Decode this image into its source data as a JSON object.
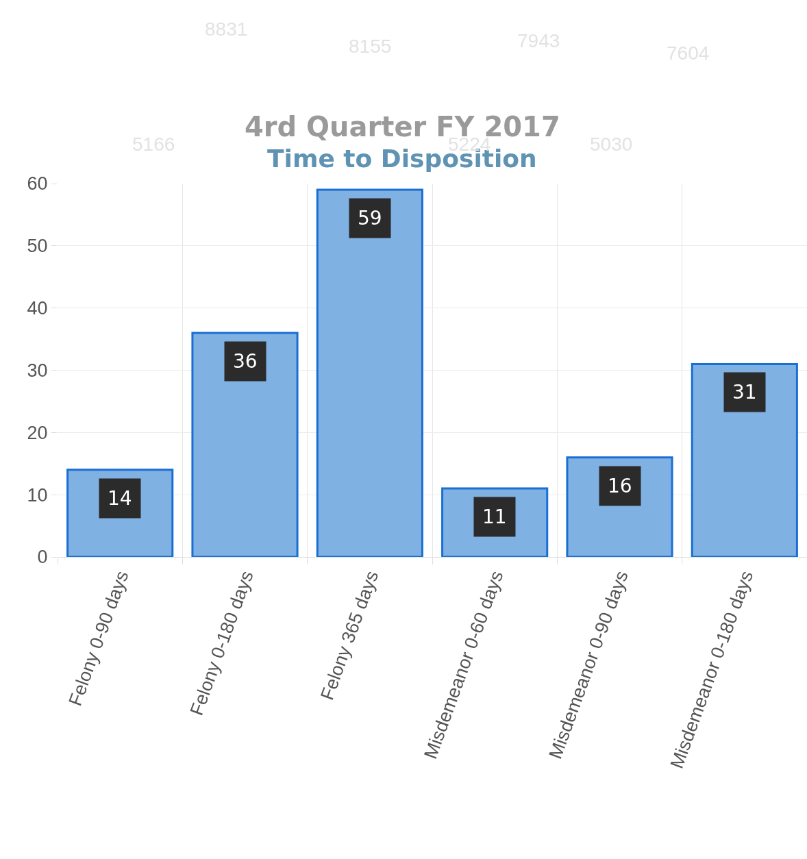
{
  "chart_data": {
    "type": "bar",
    "title": "4rd Quarter FY 2017",
    "subtitle": "Time to Disposition",
    "categories": [
      "Felony 0-90 days",
      "Felony 0-180 days",
      "Felony 365 days",
      "Misdemeanor 0-60 days",
      "Misdemeanor 0-90 days",
      "Misdemeanor 0-180 days"
    ],
    "values": [
      14,
      36,
      59,
      11,
      16,
      31
    ],
    "color": "#7fb1e3",
    "ylim": [
      0,
      60
    ],
    "yticks": [
      0,
      10,
      20,
      30,
      40,
      50,
      60
    ],
    "grid": true,
    "data_labels": true,
    "annotations": [
      "8831",
      "8155",
      "7943",
      "7604",
      "5166",
      "5224",
      "5030"
    ]
  }
}
